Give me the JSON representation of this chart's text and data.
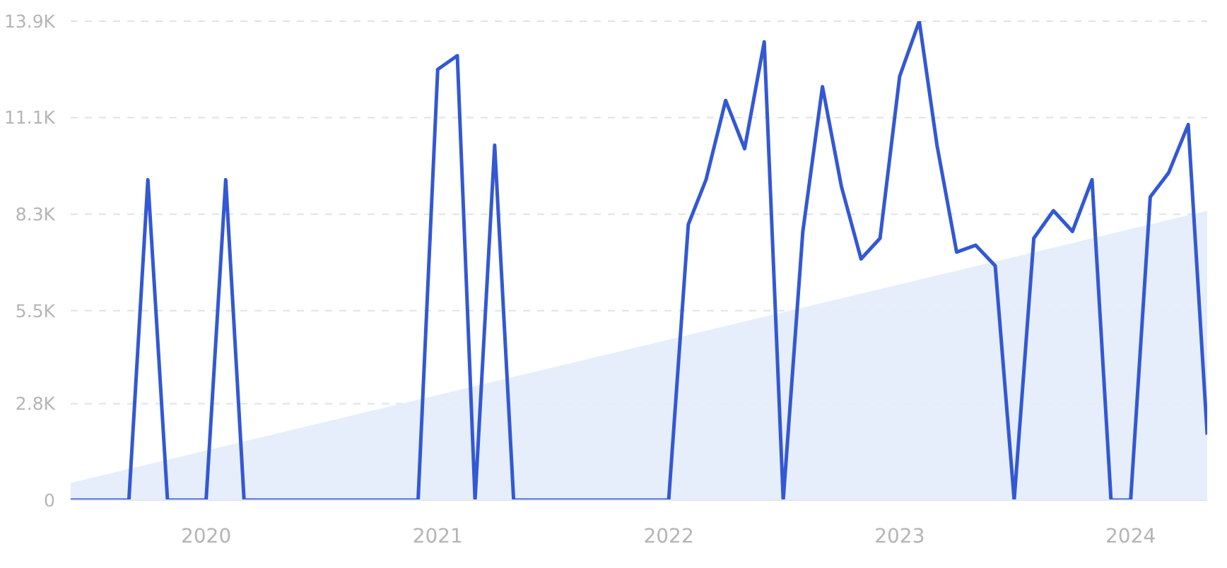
{
  "chart_data": {
    "type": "line",
    "x": [
      "2019-06",
      "2019-07",
      "2019-08",
      "2019-09",
      "2019-10",
      "2019-11",
      "2019-12",
      "2020-01",
      "2020-02",
      "2020-03",
      "2020-04",
      "2020-05",
      "2020-06",
      "2020-07",
      "2020-08",
      "2020-09",
      "2020-10",
      "2020-11",
      "2020-12",
      "2021-01",
      "2021-02",
      "2021-03",
      "2021-04",
      "2021-05",
      "2021-06",
      "2021-07",
      "2021-08",
      "2021-09",
      "2021-10",
      "2021-11",
      "2021-12",
      "2022-01",
      "2022-02",
      "2022-03",
      "2022-04",
      "2022-05",
      "2022-06",
      "2022-07",
      "2022-08",
      "2022-09",
      "2022-10",
      "2022-11",
      "2022-12",
      "2023-01",
      "2023-02",
      "2023-03",
      "2023-04",
      "2023-05",
      "2023-06",
      "2023-07",
      "2023-08",
      "2023-09",
      "2023-10",
      "2023-11",
      "2023-12",
      "2024-01",
      "2024-02",
      "2024-03",
      "2024-04",
      "2024-05"
    ],
    "series": [
      {
        "color": "#3358d4",
        "values": [
          0,
          0,
          0,
          0,
          9300,
          0,
          0,
          0,
          9300,
          0,
          0,
          0,
          0,
          0,
          0,
          0,
          0,
          0,
          0,
          12500,
          12900,
          0,
          10300,
          0,
          0,
          0,
          0,
          0,
          0,
          0,
          0,
          0,
          8000,
          9300,
          11600,
          10200,
          13300,
          0,
          7800,
          12000,
          9100,
          7000,
          7600,
          12300,
          13900,
          10300,
          7200,
          7400,
          6800,
          0,
          7600,
          8400,
          7800,
          9300,
          0,
          0,
          8800,
          9500,
          10900,
          1900
        ]
      },
      {
        "type": "area",
        "color": "#e3ecfb",
        "x": [
          "2019-06",
          "2024-05"
        ],
        "values": [
          500,
          8400
        ]
      }
    ],
    "xlim": [
      "2019-06",
      "2024-05"
    ],
    "xticks": [
      "2020",
      "2021",
      "2022",
      "2023",
      "2024"
    ],
    "ylim": [
      0,
      13900
    ],
    "yticks": [
      0,
      {
        "value": 2800,
        "label": "2.8K"
      },
      {
        "value": 5500,
        "label": "5.5K"
      },
      {
        "value": 8300,
        "label": "8.3K"
      },
      {
        "value": 11100,
        "label": "11.1K"
      },
      {
        "value": 13900,
        "label": "13.9K"
      }
    ],
    "grid": "y",
    "legend": false,
    "marker": "none",
    "line_style": "solid"
  }
}
